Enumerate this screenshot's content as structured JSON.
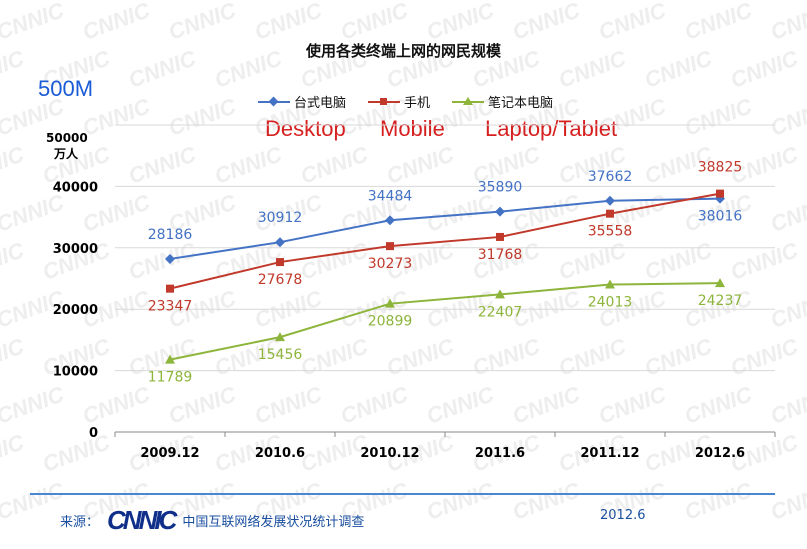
{
  "header": {
    "big_label": "500M",
    "unit_label": "50000\n万人"
  },
  "chart_data": {
    "type": "line",
    "title": "使用各类终端上网的网民规模",
    "categories": [
      "2009.12",
      "2010.6",
      "2010.12",
      "2011.6",
      "2011.12",
      "2012.6"
    ],
    "y_ticks": [
      "0",
      "10000",
      "20000",
      "30000",
      "40000"
    ],
    "ylabel": "万人",
    "ylim": [
      0,
      50000
    ],
    "grid": true,
    "legend_position": "top-center",
    "series": [
      {
        "name": "台式电脑",
        "english_label": "Desktop",
        "color": "#4472c4",
        "marker": "diamond",
        "values": [
          28186,
          30912,
          34484,
          35890,
          37662,
          38016
        ]
      },
      {
        "name": "手机",
        "english_label": "Mobile",
        "color": "#c0392b",
        "marker": "square",
        "values": [
          23347,
          27678,
          30273,
          31768,
          35558,
          38825
        ]
      },
      {
        "name": "笔记本电脑",
        "english_label": "Laptop/Tablet",
        "color": "#8db53c",
        "marker": "triangle",
        "values": [
          11789,
          15456,
          20899,
          22407,
          24013,
          24237
        ]
      }
    ]
  },
  "footer": {
    "source_label": "来源：",
    "logo": "CNNIC",
    "org": "中国互联网络发展状况统计调查",
    "date": "2012.6"
  }
}
